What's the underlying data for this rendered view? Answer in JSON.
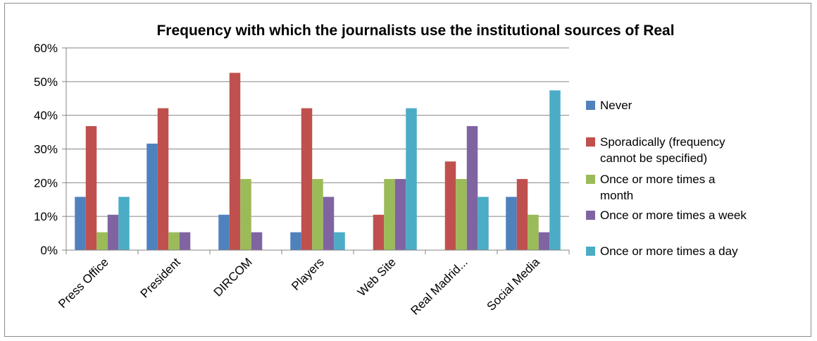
{
  "chart_data": {
    "type": "bar",
    "title": "Frequency with which the journalists use the institutional sources of Real",
    "categories": [
      "Press Office",
      "President",
      "DIRCOM",
      "Players",
      "Web Site",
      "Real Madrid...",
      "Social Media"
    ],
    "ylim": [
      0,
      60
    ],
    "yticks": [
      "0%",
      "10%",
      "20%",
      "30%",
      "40%",
      "50%",
      "60%"
    ],
    "grid": true,
    "legend_position": "right",
    "series": [
      {
        "name": "Never",
        "color": "#4f81bd",
        "values": [
          15.8,
          31.6,
          10.5,
          5.3,
          0,
          0,
          15.8
        ]
      },
      {
        "name": "Sporadically  (frequency cannot be specified)",
        "color": "#c0504d",
        "values": [
          36.8,
          42.1,
          52.6,
          42.1,
          10.5,
          26.3,
          21.1
        ]
      },
      {
        "name": "Once or more times a month",
        "color": "#9bbb59",
        "values": [
          5.3,
          5.3,
          21.1,
          21.1,
          21.1,
          21.1,
          10.5
        ]
      },
      {
        "name": "Once or more times a week",
        "color": "#8064a2",
        "values": [
          10.5,
          5.3,
          5.3,
          15.8,
          21.1,
          36.8,
          5.3
        ]
      },
      {
        "name": "Once or more times a day",
        "color": "#4bacc6",
        "values": [
          15.8,
          0,
          0,
          5.3,
          42.1,
          15.8,
          47.4
        ]
      }
    ],
    "legend_lines": [
      [
        "Never"
      ],
      [
        "Sporadically  (frequency",
        "cannot be specified)"
      ],
      [
        "Once or more times a",
        "month"
      ],
      [
        "Once or more times a week"
      ],
      [
        "Once or more times a day"
      ]
    ]
  }
}
